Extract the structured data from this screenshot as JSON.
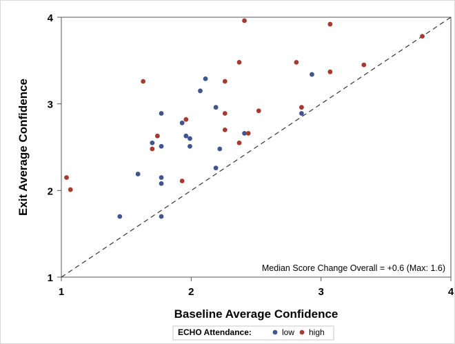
{
  "chart_data": {
    "type": "scatter",
    "xlabel": "Baseline Average Confidence",
    "ylabel": "Exit Average Confidence",
    "xlim": [
      1,
      4
    ],
    "ylim": [
      1,
      4
    ],
    "xticks": [
      "1",
      "2",
      "3",
      "4"
    ],
    "yticks": [
      "1",
      "2",
      "3",
      "4"
    ],
    "grid": false,
    "reference_line": "y = x (dashed)",
    "annotation": "Median Score Change Overall = +0.6 (Max: 1.6)",
    "legend": {
      "title": "ECHO Attendance:",
      "placement": "bottom-center"
    },
    "series": [
      {
        "name": "low",
        "color": "#3f5591",
        "points": [
          [
            1.45,
            1.7
          ],
          [
            1.59,
            2.19
          ],
          [
            1.7,
            2.55
          ],
          [
            1.77,
            2.51
          ],
          [
            1.77,
            2.89
          ],
          [
            1.77,
            2.15
          ],
          [
            1.77,
            2.08
          ],
          [
            1.77,
            1.7
          ],
          [
            1.93,
            2.78
          ],
          [
            1.96,
            2.63
          ],
          [
            1.99,
            2.6
          ],
          [
            1.99,
            2.51
          ],
          [
            2.07,
            3.15
          ],
          [
            2.11,
            3.29
          ],
          [
            2.19,
            2.96
          ],
          [
            2.19,
            2.26
          ],
          [
            2.22,
            2.48
          ],
          [
            2.41,
            2.66
          ],
          [
            2.85,
            2.89
          ],
          [
            2.93,
            3.34
          ]
        ]
      },
      {
        "name": "high",
        "color": "#a8392e",
        "points": [
          [
            1.04,
            2.15
          ],
          [
            1.07,
            2.01
          ],
          [
            1.63,
            3.26
          ],
          [
            1.7,
            2.48
          ],
          [
            1.74,
            2.63
          ],
          [
            1.93,
            2.11
          ],
          [
            1.96,
            2.82
          ],
          [
            2.26,
            3.26
          ],
          [
            2.26,
            2.89
          ],
          [
            2.26,
            2.7
          ],
          [
            2.37,
            2.55
          ],
          [
            2.37,
            3.48
          ],
          [
            2.41,
            3.96
          ],
          [
            2.44,
            2.66
          ],
          [
            2.52,
            2.92
          ],
          [
            2.81,
            3.48
          ],
          [
            2.85,
            2.96
          ],
          [
            3.07,
            3.92
          ],
          [
            3.07,
            3.37
          ],
          [
            3.33,
            3.45
          ],
          [
            3.78,
            3.78
          ]
        ]
      }
    ]
  }
}
